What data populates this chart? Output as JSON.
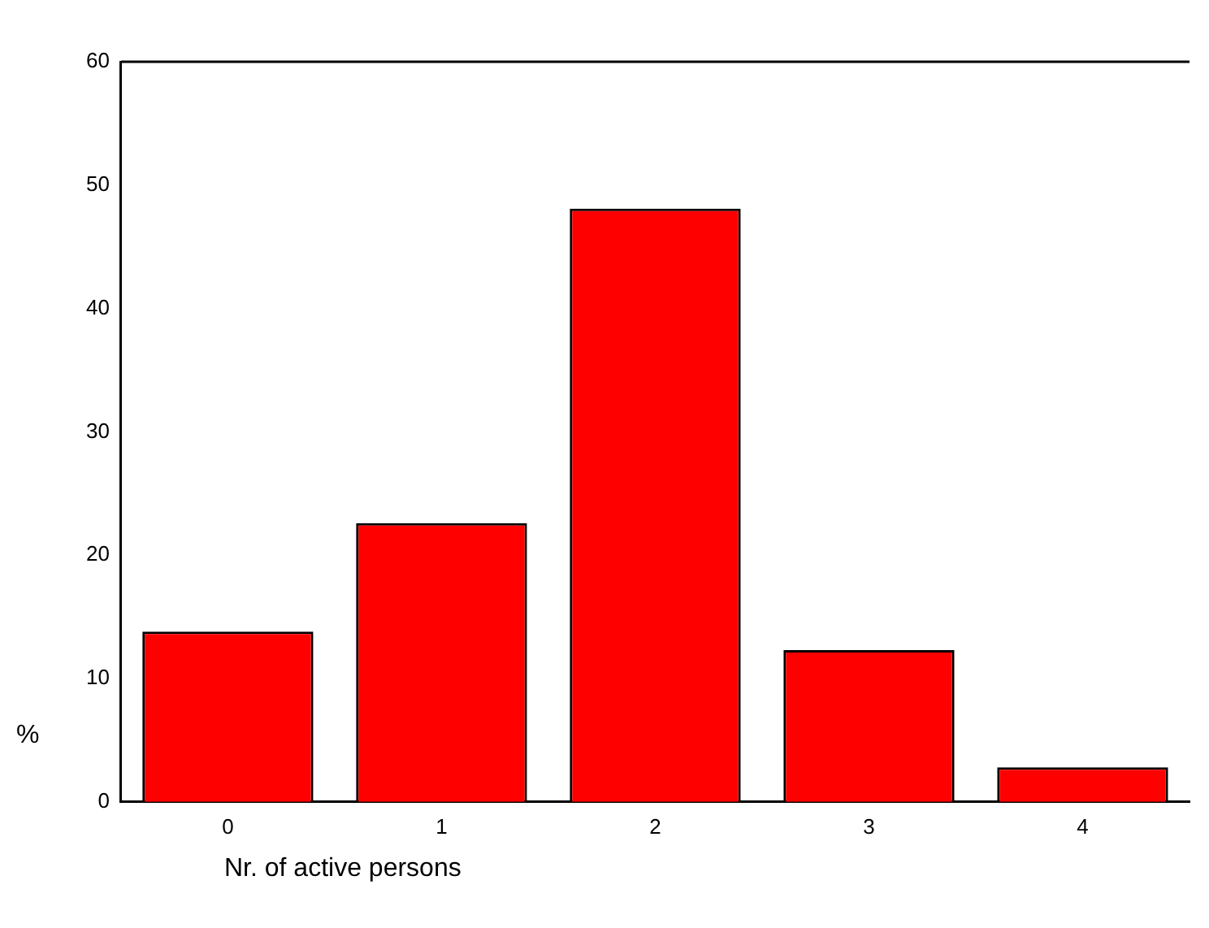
{
  "chart_data": {
    "type": "bar",
    "xlabel": "Nr. of active persons",
    "ylabel": "%",
    "categories": [
      "0",
      "1",
      "2",
      "3",
      "4"
    ],
    "values": [
      13.8,
      22.6,
      48.1,
      12.3,
      2.8
    ],
    "color": "#ff0000",
    "ylim": [
      0,
      60
    ],
    "yticks": [
      0,
      10,
      20,
      30,
      40,
      50,
      60
    ],
    "grid": false,
    "legend": false
  }
}
